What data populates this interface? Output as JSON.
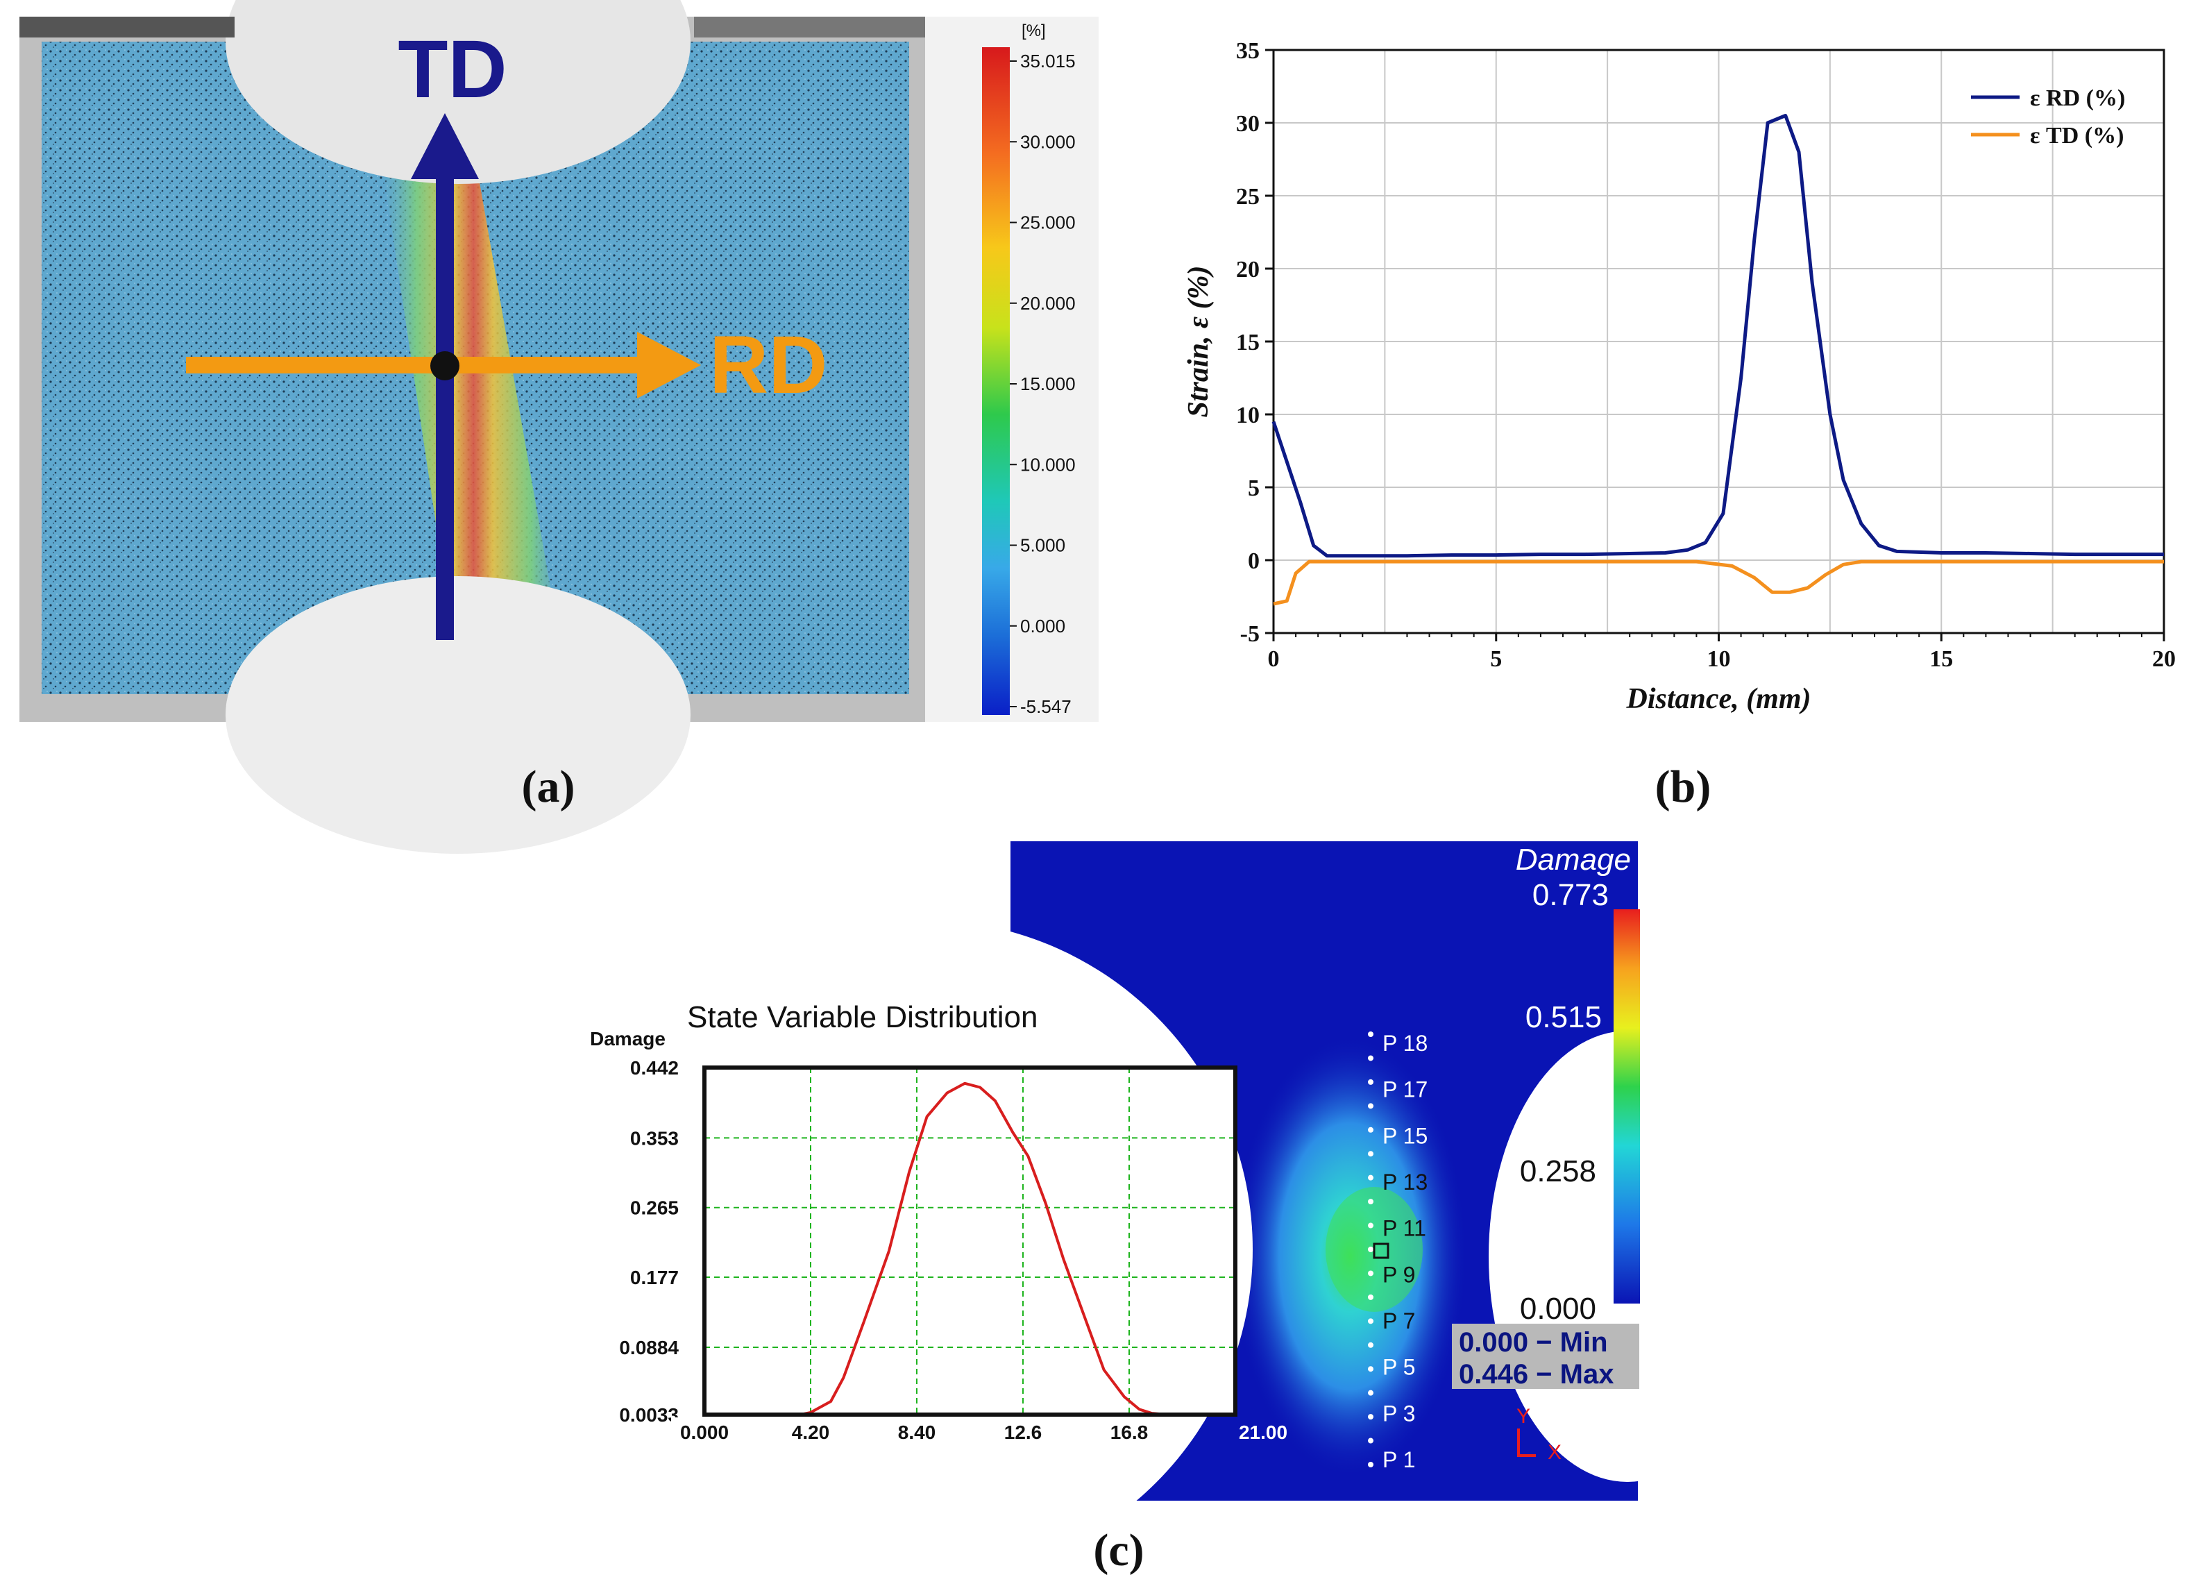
{
  "panel_labels": {
    "a": "(a)",
    "b": "(b)",
    "c": "(c)"
  },
  "panel_a": {
    "td_label": "TD",
    "rd_label": "RD",
    "colorbar": {
      "unit": "[%]",
      "ticks": [
        "35.015",
        "30.000",
        "25.000",
        "20.000",
        "15.000",
        "10.000",
        "5.000",
        "0.000",
        "-5.547"
      ],
      "colors": [
        "#d7191c",
        "#f46d20",
        "#f7c81a",
        "#c8e21b",
        "#2ec94c",
        "#1fc8b8",
        "#38a9e8",
        "#1c6fd8",
        "#0a1fc7"
      ]
    },
    "colors": {
      "td_arrow": "#1a1a8c",
      "rd_arrow": "#f39a12",
      "specimen": "#5fa8cf"
    }
  },
  "chart_data": [
    {
      "type": "line",
      "panel": "b",
      "title": "",
      "xlabel": "Distance, (mm)",
      "ylabel": "Strain, ε (%)",
      "xlim": [
        0,
        20
      ],
      "ylim": [
        -5,
        35
      ],
      "xticks": [
        "0",
        "5",
        "10",
        "15",
        "20"
      ],
      "yticks": [
        "-5",
        "0",
        "5",
        "10",
        "15",
        "20",
        "25",
        "30",
        "35"
      ],
      "grid": true,
      "legend_position": "top-right",
      "series": [
        {
          "name": "ε RD (%)",
          "color": "#0d1a85",
          "x": [
            0,
            0.6,
            0.9,
            1.2,
            2,
            3,
            4,
            5,
            6,
            7,
            8,
            8.8,
            9.3,
            9.7,
            10.1,
            10.5,
            10.8,
            11.1,
            11.5,
            11.8,
            12.1,
            12.5,
            12.8,
            13.2,
            13.6,
            14,
            15,
            16,
            17,
            18,
            19,
            20
          ],
          "y": [
            9.5,
            4,
            1,
            0.3,
            0.3,
            0.3,
            0.35,
            0.35,
            0.4,
            0.4,
            0.45,
            0.5,
            0.7,
            1.2,
            3.2,
            12.5,
            22,
            30,
            30.5,
            28,
            19,
            10,
            5.5,
            2.5,
            1,
            0.6,
            0.5,
            0.5,
            0.45,
            0.4,
            0.4,
            0.4
          ]
        },
        {
          "name": "ε TD (%)",
          "color": "#f4901e",
          "x": [
            0,
            0.3,
            0.5,
            0.8,
            2,
            4,
            6,
            8,
            9.5,
            10.3,
            10.8,
            11.2,
            11.6,
            12,
            12.4,
            12.8,
            13.2,
            14,
            16,
            18,
            20
          ],
          "y": [
            -3,
            -2.8,
            -0.9,
            -0.1,
            -0.1,
            -0.1,
            -0.1,
            -0.1,
            -0.1,
            -0.4,
            -1.2,
            -2.2,
            -2.2,
            -1.9,
            -1.0,
            -0.3,
            -0.1,
            -0.1,
            -0.1,
            -0.1,
            -0.1
          ]
        }
      ]
    },
    {
      "type": "line",
      "panel": "c",
      "title": "State Variable Distribution",
      "xlabel": "",
      "ylabel": "Damage",
      "xlim": [
        0,
        21
      ],
      "ylim": [
        0.0033,
        0.442
      ],
      "xticks": [
        "0.000",
        "4.20",
        "8.40",
        "12.6",
        "16.8",
        "21.00"
      ],
      "yticks": [
        "0.442",
        "0.353",
        "0.265",
        "0.177",
        "0.0884",
        "0.0033"
      ],
      "grid": true,
      "series": [
        {
          "name": "Damage",
          "color": "#d81e1e",
          "x": [
            0,
            3.8,
            4.2,
            5,
            5.5,
            6.3,
            7.3,
            8.1,
            8.8,
            9.6,
            10.3,
            10.9,
            11.5,
            12.2,
            12.8,
            13.5,
            14.2,
            15,
            15.8,
            16.6,
            17.2,
            17.7,
            18.3,
            21
          ],
          "y": [
            0.0033,
            0.0033,
            0.006,
            0.02,
            0.05,
            0.12,
            0.21,
            0.31,
            0.38,
            0.41,
            0.422,
            0.417,
            0.4,
            0.36,
            0.33,
            0.27,
            0.2,
            0.13,
            0.06,
            0.026,
            0.01,
            0.005,
            0.0033,
            0.0033
          ]
        }
      ]
    }
  ],
  "panel_c": {
    "colorbar": {
      "title": "Damage",
      "labels": [
        "0.773",
        "0.515",
        "0.258",
        "0.000"
      ]
    },
    "min_max": {
      "min": "0.000 − Min",
      "max": "0.446 − Max"
    },
    "points": [
      "P 18",
      "P 17",
      "P 15",
      "P 13",
      "P 11",
      "P 9",
      "P 7",
      "P 5",
      "P 3",
      "P 1"
    ],
    "axis_y": "Y",
    "axis_x": "X",
    "colors": {
      "background": "#0a14b4",
      "highlight": "#2fd2e0",
      "minmax_bg": "#b9b9b9",
      "minmax_text": "#0a1480"
    }
  }
}
